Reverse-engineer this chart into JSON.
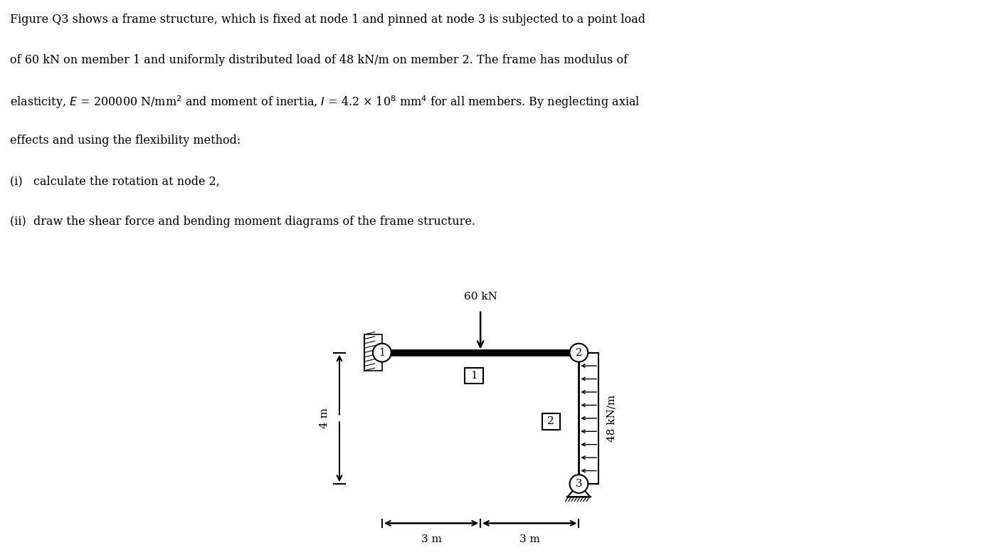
{
  "bg_color": "#ffffff",
  "frame_color": "#000000",
  "n1": [
    0,
    4
  ],
  "n2": [
    6,
    4
  ],
  "n3": [
    6,
    0
  ],
  "point_load_value": "60 kN",
  "udl_value": "48 kN/m",
  "dim1": "3 m",
  "dim2": "3 m",
  "height_dim": "4 m",
  "text_lines": [
    "Figure Q3 shows a frame structure, which is fixed at node 1 and pinned at node 3 is subjected to a point load",
    "of 60 kN on member 1 and uniformly distributed load of 48 kN/m on member 2. The frame has modulus of",
    "elasticity, $E$ = 200000 N/mm$^2$ and moment of inertia, $I$ = 4.2 × 10$^8$ mm$^4$ for all members. By neglecting axial",
    "effects and using the flexibility method:",
    "(i)   calculate the rotation at node 2,",
    "(ii)  draw the shear force and bending moment diagrams of the frame structure."
  ]
}
